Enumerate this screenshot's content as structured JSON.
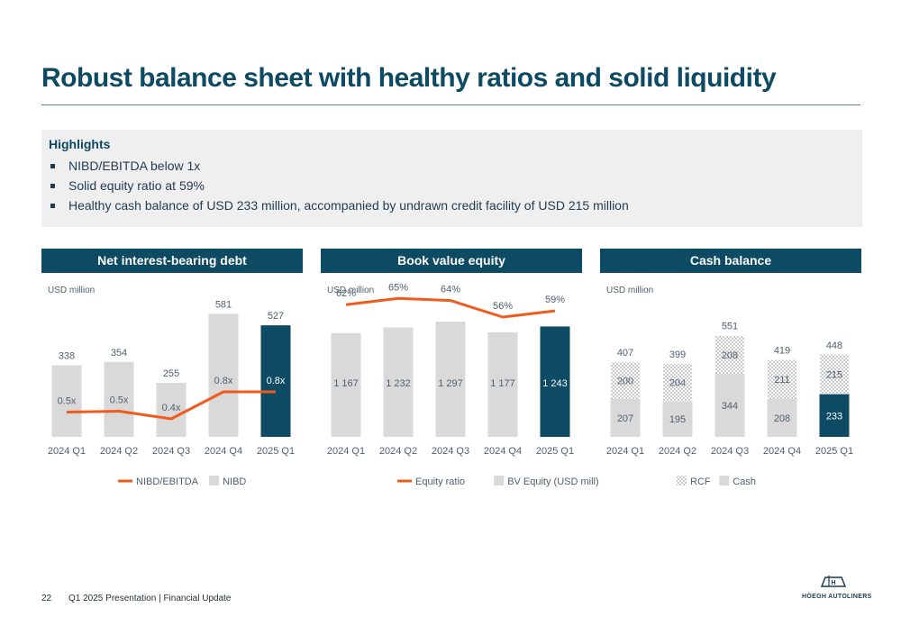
{
  "title": "Robust balance sheet with healthy ratios and solid liquidity",
  "highlights": {
    "heading": "Highlights",
    "items": [
      "NIBD/EBITDA below 1x",
      "Solid equity ratio at 59%",
      "Healthy cash balance of USD 233 million, accompanied by undrawn credit facility of USD 215 million"
    ]
  },
  "colors": {
    "navy": "#0d4a63",
    "bar_grey": "#d9d9d9",
    "line_orange": "#f05a1a",
    "text_grey": "#50606e"
  },
  "chart_data": [
    {
      "type": "bar",
      "title": "Net interest-bearing debt",
      "unit_label": "USD million",
      "categories": [
        "2024 Q1",
        "2024 Q2",
        "2024 Q3",
        "2024 Q4",
        "2025 Q1"
      ],
      "series": [
        {
          "name": "NIBD",
          "kind": "bar",
          "values": [
            338,
            354,
            255,
            581,
            527
          ],
          "labels": [
            "338",
            "354",
            "255",
            "581",
            "527"
          ]
        },
        {
          "name": "NIBD/EBITDA",
          "kind": "line",
          "values": [
            0.5,
            0.5,
            0.4,
            0.8,
            0.8
          ],
          "labels": [
            "0.5x",
            "0.5x",
            "0.4x",
            "0.8x",
            "0.8x"
          ]
        }
      ],
      "highlight_last": true,
      "legend": [
        {
          "name": "NIBD/EBITDA",
          "swatch": "line"
        },
        {
          "name": "NIBD",
          "swatch": "bar"
        }
      ]
    },
    {
      "type": "bar",
      "title": "Book value equity",
      "unit_label": "USD million",
      "categories": [
        "2024 Q1",
        "2024 Q2",
        "2024 Q3",
        "2024 Q4",
        "2025 Q1"
      ],
      "series": [
        {
          "name": "BV Equity (USD mill)",
          "kind": "bar",
          "values": [
            1167,
            1232,
            1297,
            1177,
            1243
          ],
          "labels": [
            "1 167",
            "1 232",
            "1 297",
            "1 177",
            "1 243"
          ]
        },
        {
          "name": "Equity ratio",
          "kind": "line",
          "values": [
            62,
            65,
            64,
            56,
            59
          ],
          "labels": [
            "62%",
            "65%",
            "64%",
            "56%",
            "59%"
          ]
        }
      ],
      "highlight_last": true,
      "legend": [
        {
          "name": "Equity ratio",
          "swatch": "line"
        },
        {
          "name": "BV Equity (USD mill)",
          "swatch": "bar"
        }
      ]
    },
    {
      "type": "bar",
      "stacked": true,
      "title": "Cash balance",
      "unit_label": "USD million",
      "categories": [
        "2024 Q1",
        "2024 Q2",
        "2024 Q3",
        "2024 Q4",
        "2025 Q1"
      ],
      "series": [
        {
          "name": "Cash",
          "kind": "bar",
          "values": [
            207,
            195,
            344,
            208,
            233
          ]
        },
        {
          "name": "RCF",
          "kind": "bar-dotted",
          "values": [
            200,
            204,
            208,
            211,
            215
          ]
        }
      ],
      "totals": [
        407,
        399,
        551,
        419,
        448
      ],
      "highlight_last": true,
      "legend": [
        {
          "name": "RCF",
          "swatch": "dotted"
        },
        {
          "name": "Cash",
          "swatch": "bar"
        }
      ]
    }
  ],
  "footer": {
    "page_number": "22",
    "text": "Q1 2025 Presentation | Financial Update",
    "logo_text": "HÖEGH AUTOLINERS"
  }
}
